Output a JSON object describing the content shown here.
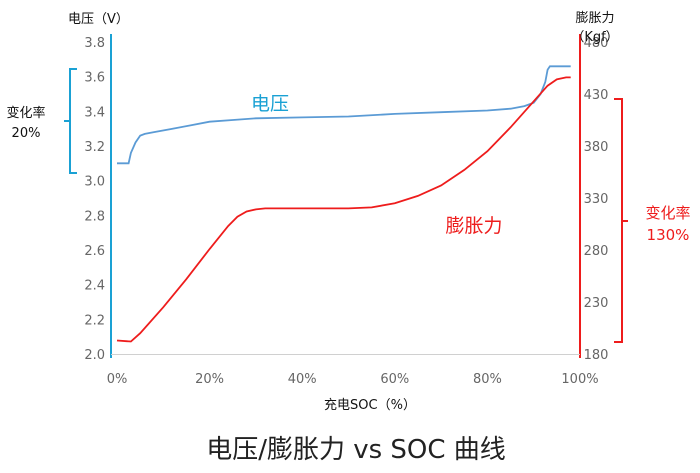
{
  "chart_data": {
    "type": "line",
    "title": "电压/膨胀力 vs SOC 曲线",
    "xlabel": "充电SOC（%）",
    "x_ticks": [
      "0%",
      "20%",
      "40%",
      "60%",
      "80%",
      "100%"
    ],
    "xlim": [
      0,
      100
    ],
    "y_left": {
      "label": "电压（V）",
      "ylim": [
        2.0,
        3.8
      ],
      "ticks": [
        "2.0",
        "2.2",
        "2.4",
        "2.6",
        "2.8",
        "3.0",
        "3.2",
        "3.4",
        "3.6",
        "3.8"
      ]
    },
    "y_right": {
      "label_line1": "膨胀力",
      "label_line2": "（Kgf）",
      "ylim": [
        180,
        480
      ],
      "ticks": [
        "180",
        "230",
        "280",
        "330",
        "380",
        "430",
        "480"
      ]
    },
    "series": [
      {
        "name": "电压",
        "axis": "left",
        "color": "#5b9bd5",
        "x": [
          0,
          2.5,
          3,
          4,
          5,
          6,
          8,
          12,
          16,
          20,
          25,
          30,
          40,
          50,
          60,
          70,
          80,
          85,
          88,
          90,
          91.5,
          92.5,
          93,
          93.5,
          95,
          98
        ],
        "y": [
          3.1,
          3.1,
          3.16,
          3.22,
          3.26,
          3.27,
          3.28,
          3.3,
          3.32,
          3.34,
          3.35,
          3.36,
          3.365,
          3.37,
          3.385,
          3.395,
          3.405,
          3.415,
          3.43,
          3.45,
          3.5,
          3.57,
          3.64,
          3.66,
          3.66,
          3.66
        ]
      },
      {
        "name": "膨胀力",
        "axis": "right",
        "color": "#ee1c1c",
        "x": [
          0,
          3,
          5,
          10,
          15,
          20,
          24,
          26,
          28,
          30,
          32,
          35,
          40,
          50,
          55,
          60,
          65,
          70,
          75,
          80,
          85,
          90,
          93,
          95,
          97,
          98
        ],
        "y": [
          193,
          192,
          200,
          225,
          252,
          281,
          303,
          312,
          317,
          319,
          320,
          320,
          320,
          320,
          321,
          325,
          332,
          342,
          357,
          375,
          398,
          423,
          438,
          444,
          446,
          446
        ]
      }
    ],
    "annotations": [
      {
        "id": "voltage-label",
        "text": "电压"
      },
      {
        "id": "force-label",
        "text": "膨胀力"
      },
      {
        "id": "left-range",
        "line1": "变化率",
        "line2": "20%"
      },
      {
        "id": "right-range",
        "line1": "变化率",
        "line2": "130%"
      }
    ]
  }
}
